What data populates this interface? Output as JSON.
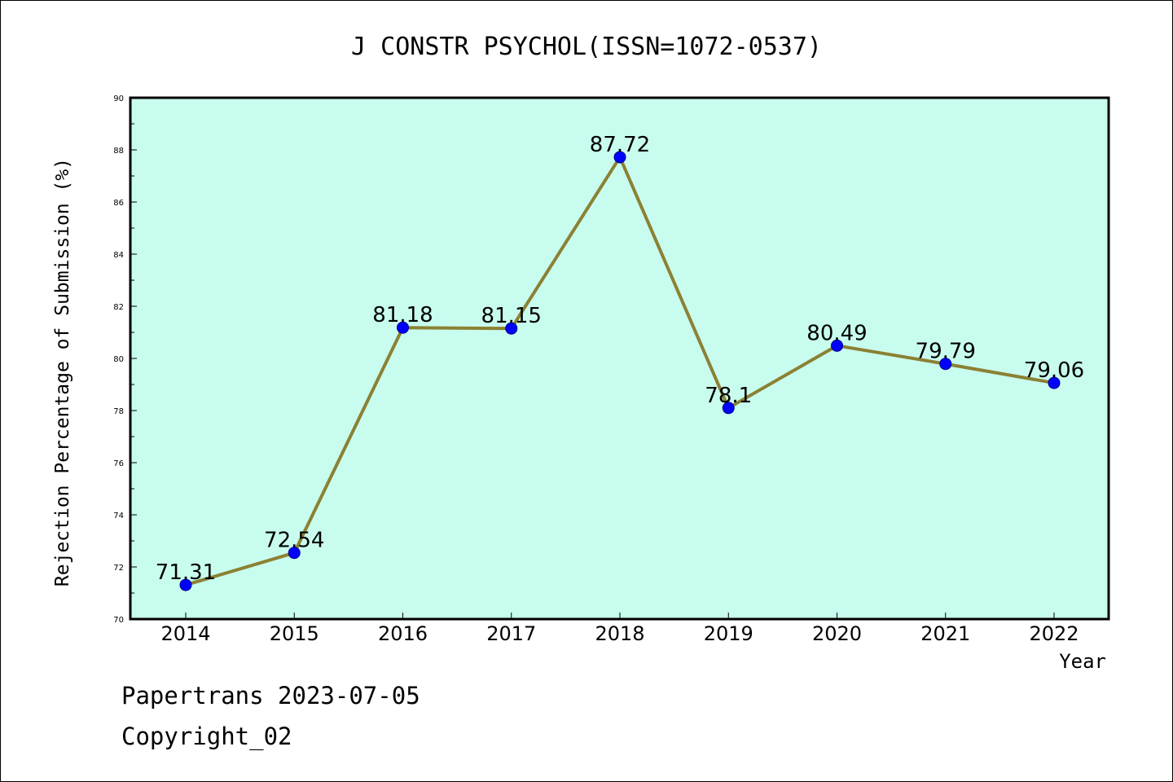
{
  "chart_data": {
    "type": "line",
    "title": "J CONSTR PSYCHOL(ISSN=1072-0537)",
    "xlabel": "Year",
    "ylabel": "Rejection Percentage of Submission (%)",
    "categories": [
      "2014",
      "2015",
      "2016",
      "2017",
      "2018",
      "2019",
      "2020",
      "2021",
      "2022"
    ],
    "values": [
      71.31,
      72.54,
      81.18,
      81.15,
      87.72,
      78.1,
      80.49,
      79.79,
      79.06
    ],
    "data_labels": [
      "71.31",
      "72.54",
      "81.18",
      "81.15",
      "87.72",
      "78.1",
      "80.49",
      "79.79",
      "79.06"
    ],
    "ylim": [
      70,
      90
    ],
    "yticks": [
      70,
      72,
      74,
      76,
      78,
      80,
      82,
      84,
      86,
      88,
      90
    ],
    "ytick_labels": [
      "70",
      "72",
      "74",
      "76",
      "78",
      "80",
      "82",
      "84",
      "86",
      "88",
      "90"
    ],
    "grid": false,
    "colors": {
      "plot_background": "#c8fcee",
      "line": "#8b8133",
      "marker": "#0000ff"
    }
  },
  "footer": {
    "line1": "Papertrans 2023-07-05",
    "line2": "Copyright_02"
  }
}
